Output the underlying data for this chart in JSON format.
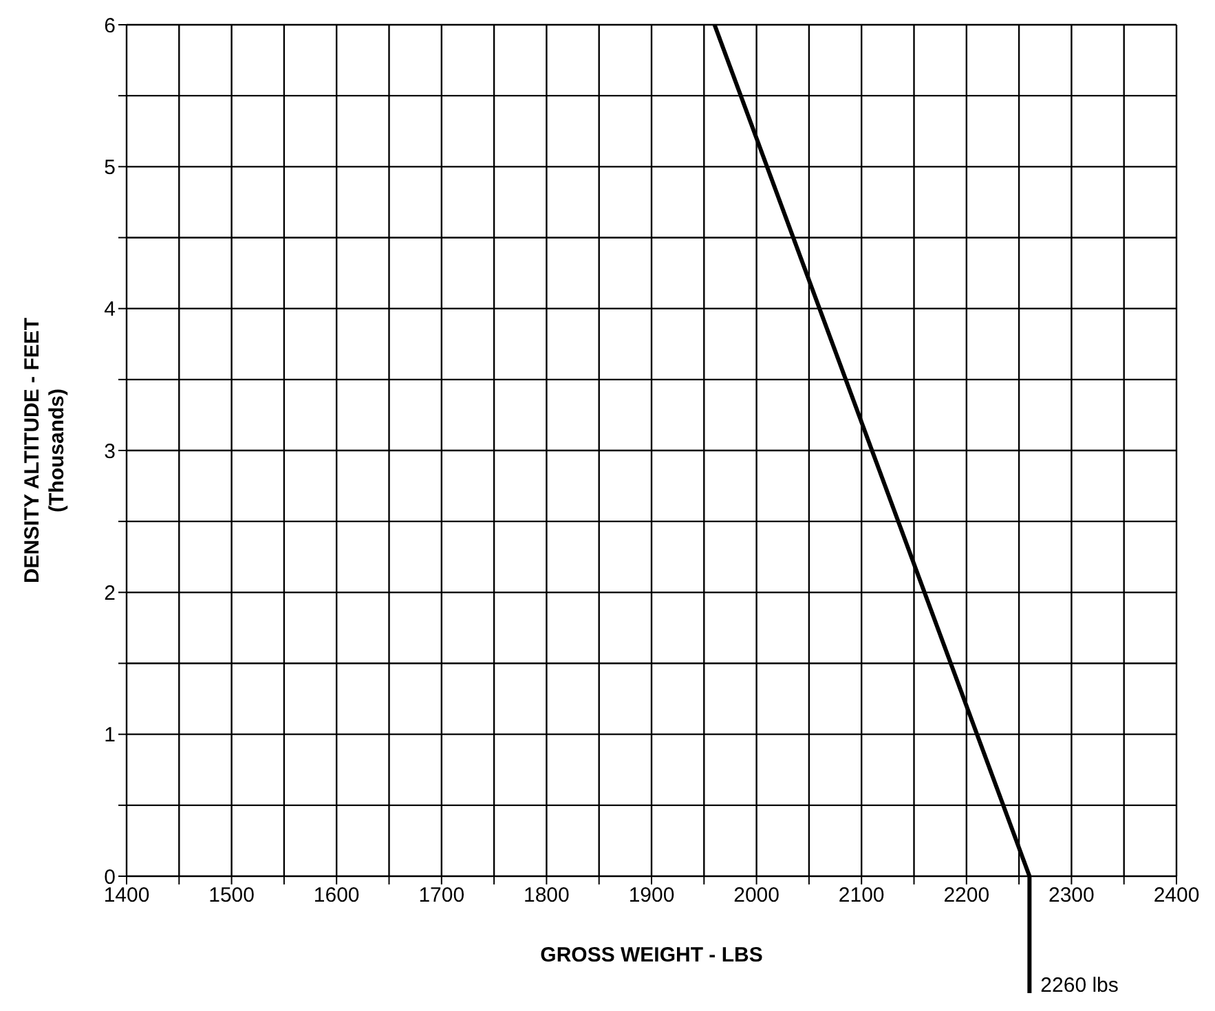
{
  "chart_data": {
    "type": "line",
    "xlabel": "GROSS WEIGHT - LBS",
    "ylabel": "DENSITY ALTITUDE - FEET\n(Thousands)",
    "x": [
      1960,
      2260
    ],
    "series": [
      {
        "color": "#000000",
        "values": [
          6,
          0
        ]
      }
    ],
    "xlim": [
      1400,
      2400
    ],
    "xticks": [
      1400,
      {
        "value": 1450,
        "label": null
      },
      1500,
      {
        "value": 1550,
        "label": null
      },
      1600,
      {
        "value": 1650,
        "label": null
      },
      1700,
      {
        "value": 1750,
        "label": null
      },
      1800,
      {
        "value": 1850,
        "label": null
      },
      1900,
      {
        "value": 1950,
        "label": null
      },
      2000,
      {
        "value": 2050,
        "label": null
      },
      2100,
      {
        "value": 2150,
        "label": null
      },
      2200,
      {
        "value": 2250,
        "label": null
      },
      2300,
      {
        "value": 2350,
        "label": null
      },
      2400
    ],
    "ylim": [
      0,
      6
    ],
    "yticks": [
      0,
      {
        "value": 0.5,
        "label": null
      },
      1,
      {
        "value": 1.5,
        "label": null
      },
      2,
      {
        "value": 2.5,
        "label": null
      },
      3,
      {
        "value": 3.5,
        "label": null
      },
      4,
      {
        "value": 4.5,
        "label": null
      },
      5,
      {
        "value": 5.5,
        "label": null
      },
      6
    ],
    "grid": true,
    "marker": "none",
    "line_style": "solid",
    "legend": false,
    "annotations": [
      "2260 lbs"
    ]
  }
}
